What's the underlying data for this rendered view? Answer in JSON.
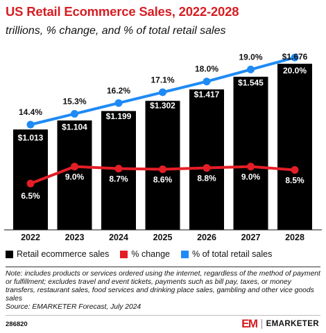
{
  "title": "US Retail Ecommerce Sales, 2022-2028",
  "subtitle": "trillions, % change, and % of total retail sales",
  "chart_data": {
    "type": "bar",
    "categories": [
      "2022",
      "2023",
      "2024",
      "2025",
      "2026",
      "2027",
      "2028"
    ],
    "series": [
      {
        "name": "Retail ecommerce sales",
        "type": "bar",
        "color": "#000000",
        "values": [
          1.013,
          1.104,
          1.199,
          1.302,
          1.417,
          1.545,
          1.676
        ],
        "labels": [
          "$1.013",
          "$1.104",
          "$1.199",
          "$1.302",
          "$1.417",
          "$1.545",
          "$1.676"
        ]
      },
      {
        "name": "% change",
        "type": "line",
        "color": "#e41e26",
        "values": [
          6.5,
          9.0,
          8.7,
          8.6,
          8.8,
          9.0,
          8.5
        ],
        "labels": [
          "6.5%",
          "9.0%",
          "8.7%",
          "8.6%",
          "8.8%",
          "9.0%",
          "8.5%"
        ]
      },
      {
        "name": "% of total retail sales",
        "type": "line",
        "color": "#1f8af5",
        "values": [
          14.4,
          15.3,
          16.2,
          17.1,
          18.0,
          19.0,
          20.0
        ],
        "labels": [
          "14.4%",
          "15.3%",
          "16.2%",
          "17.1%",
          "18.0%",
          "19.0%",
          "20.0%"
        ]
      }
    ],
    "legend_position": "bottom"
  },
  "legend": [
    {
      "label": "Retail ecommerce sales",
      "color": "#000000"
    },
    {
      "label": "% change",
      "color": "#e41e26"
    },
    {
      "label": "% of total retail sales",
      "color": "#1f8af5"
    }
  ],
  "note": "Note: includes products or services ordered using the internet, regardless of the method of payment or fulfillment; excludes travel and event tickets, payments such as bill pay, taxes, or money transfers, restaurant sales, food services and drinking place sales, gambling and other vice goods sales",
  "source": "Source: EMARKETER Forecast, July 2024",
  "chart_id": "286820",
  "brand": {
    "mark": "EM",
    "name": "EMARKETER",
    "accent": "#d61e23"
  }
}
